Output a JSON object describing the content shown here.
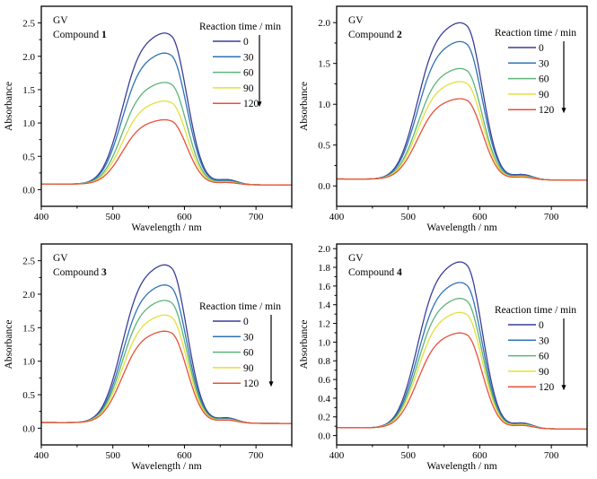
{
  "chart_data": [
    {
      "type": "line",
      "title": "",
      "annotation": [
        "GV",
        "Compound ",
        "1"
      ],
      "xlabel": "Wavelength / nm",
      "ylabel": "Absorbance",
      "xlim": [
        400,
        750
      ],
      "ylim": [
        -0.25,
        2.75
      ],
      "xticks": [
        400,
        500,
        600,
        700
      ],
      "yticks": [
        "0.0",
        "0.5",
        "1.0",
        "1.5",
        "2.0",
        "2.5"
      ],
      "ytick_values": [
        0,
        0.5,
        1.0,
        1.5,
        2.0,
        2.5
      ],
      "legend": {
        "title": "Reaction time  / min",
        "placement": "top-right"
      },
      "series": [
        {
          "name": "0",
          "color": "#3a3f98",
          "peak_nm": 582,
          "peak_abs": 2.35
        },
        {
          "name": "30",
          "color": "#2f73b6",
          "peak_nm": 582,
          "peak_abs": 2.05
        },
        {
          "name": "60",
          "color": "#5db37a",
          "peak_nm": 582,
          "peak_abs": 1.61
        },
        {
          "name": "90",
          "color": "#e2e03c",
          "peak_nm": 582,
          "peak_abs": 1.33
        },
        {
          "name": "120",
          "color": "#e8503a",
          "peak_nm": 582,
          "peak_abs": 1.05
        }
      ]
    },
    {
      "type": "line",
      "title": "",
      "annotation": [
        "GV",
        "Compound ",
        "2"
      ],
      "xlabel": "Wavelength / nm",
      "ylabel": "Absorbance",
      "xlim": [
        400,
        750
      ],
      "ylim": [
        -0.25,
        2.2
      ],
      "xticks": [
        400,
        500,
        600,
        700
      ],
      "yticks": [
        "0.0",
        "0.5",
        "1.0",
        "1.5",
        "2.0"
      ],
      "ytick_values": [
        0,
        0.5,
        1.0,
        1.5,
        2.0
      ],
      "legend": {
        "title": "Reaction time  / min",
        "placement": "top-right"
      },
      "series": [
        {
          "name": "0",
          "color": "#3a3f98",
          "peak_nm": 582,
          "peak_abs": 2.0
        },
        {
          "name": "30",
          "color": "#2f73b6",
          "peak_nm": 582,
          "peak_abs": 1.77
        },
        {
          "name": "60",
          "color": "#5db37a",
          "peak_nm": 582,
          "peak_abs": 1.44
        },
        {
          "name": "90",
          "color": "#e2e03c",
          "peak_nm": 582,
          "peak_abs": 1.28
        },
        {
          "name": "120",
          "color": "#e8503a",
          "peak_nm": 582,
          "peak_abs": 1.07
        }
      ]
    },
    {
      "type": "line",
      "title": "",
      "annotation": [
        "GV",
        "Compound ",
        "3"
      ],
      "xlabel": "Wavelength / nm",
      "ylabel": "Absorbance",
      "xlim": [
        400,
        750
      ],
      "ylim": [
        -0.25,
        2.75
      ],
      "xticks": [
        400,
        500,
        600,
        700
      ],
      "yticks": [
        "0.0",
        "0.5",
        "1.0",
        "1.5",
        "2.0",
        "2.5"
      ],
      "ytick_values": [
        0,
        0.5,
        1.0,
        1.5,
        2.0,
        2.5
      ],
      "legend": {
        "title": "Reaction time  / min",
        "placement": "right"
      },
      "series": [
        {
          "name": "0",
          "color": "#3a3f98",
          "peak_nm": 582,
          "peak_abs": 2.44
        },
        {
          "name": "30",
          "color": "#2f73b6",
          "peak_nm": 582,
          "peak_abs": 2.14
        },
        {
          "name": "60",
          "color": "#5db37a",
          "peak_nm": 582,
          "peak_abs": 1.91
        },
        {
          "name": "90",
          "color": "#e2e03c",
          "peak_nm": 582,
          "peak_abs": 1.69
        },
        {
          "name": "120",
          "color": "#e8503a",
          "peak_nm": 582,
          "peak_abs": 1.45
        }
      ]
    },
    {
      "type": "line",
      "title": "",
      "annotation": [
        "GV",
        "Compound ",
        "4"
      ],
      "xlabel": "Wavelength / nm",
      "ylabel": "Absorbance",
      "xlim": [
        400,
        750
      ],
      "ylim": [
        -0.1,
        2.05
      ],
      "xticks": [
        400,
        500,
        600,
        700
      ],
      "yticks": [
        "0.0",
        "0.2",
        "0.4",
        "0.6",
        "0.8",
        "1.0",
        "1.2",
        "1.4",
        "1.6",
        "1.8",
        "2.0"
      ],
      "ytick_values": [
        0,
        0.2,
        0.4,
        0.6,
        0.8,
        1.0,
        1.2,
        1.4,
        1.6,
        1.8,
        2.0
      ],
      "legend": {
        "title": "Reaction time  / min",
        "placement": "right"
      },
      "series": [
        {
          "name": "0",
          "color": "#3a3f98",
          "peak_nm": 582,
          "peak_abs": 1.86
        },
        {
          "name": "30",
          "color": "#2f73b6",
          "peak_nm": 582,
          "peak_abs": 1.64
        },
        {
          "name": "60",
          "color": "#5db37a",
          "peak_nm": 582,
          "peak_abs": 1.47
        },
        {
          "name": "90",
          "color": "#e2e03c",
          "peak_nm": 582,
          "peak_abs": 1.32
        },
        {
          "name": "120",
          "color": "#e8503a",
          "peak_nm": 582,
          "peak_abs": 1.1
        }
      ]
    }
  ]
}
